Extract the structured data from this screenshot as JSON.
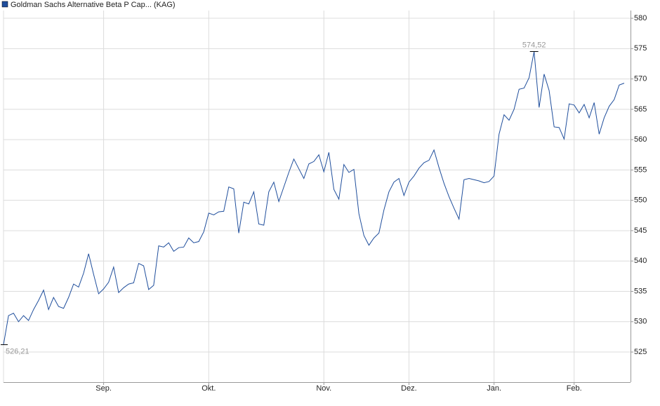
{
  "chart_data": {
    "type": "line",
    "series": [
      {
        "name": "Goldman Sachs Alternative Beta P Cap... (KAG)",
        "color": "#1f4e9c",
        "values": [
          526.21,
          531,
          531.4,
          530,
          531,
          530.2,
          532,
          533.5,
          535.2,
          532,
          534,
          532.5,
          532.2,
          534,
          536.2,
          535.7,
          538,
          541.2,
          537.8,
          534.6,
          535.4,
          536.5,
          539,
          534.8,
          535.6,
          536.2,
          536.4,
          539.6,
          539.2,
          535.3,
          536,
          542.5,
          542.3,
          543,
          541.6,
          542.2,
          542.3,
          543.8,
          543,
          543.2,
          544.8,
          547.9,
          547.6,
          548.1,
          548.2,
          552.2,
          551.9,
          544.6,
          549.7,
          549.4,
          551.4,
          546.1,
          545.9,
          551.4,
          553,
          549.8,
          552.2,
          554.6,
          556.8,
          555.2,
          553.6,
          556,
          556.4,
          557.5,
          554.7,
          557.9,
          551.8,
          550.2,
          555.9,
          554.6,
          555.1,
          547.8,
          544.2,
          542.6,
          543.8,
          544.6,
          548.4,
          551.4,
          553,
          553.6,
          550.8,
          553,
          554,
          555.3,
          556.2,
          556.6,
          558.3,
          555.4,
          552.8,
          550.6,
          548.7,
          546.9,
          553.4,
          553.6,
          553.4,
          553.2,
          552.9,
          553.1,
          554,
          560.9,
          564.1,
          563.2,
          565,
          568.3,
          568.5,
          570.2,
          574.52,
          565.3,
          570.8,
          568.1,
          562.1,
          562,
          560.1,
          565.9,
          565.7,
          564.4,
          565.8,
          563.6,
          566.1,
          560.9,
          563.6,
          565.5,
          566.6,
          569,
          569.3
        ],
        "high_label": "574,52",
        "low_label": "526,21"
      }
    ],
    "categories": [
      null,
      null,
      null,
      null,
      null,
      null,
      null,
      null,
      null,
      null,
      null,
      null,
      null,
      null,
      null,
      null,
      null,
      null,
      null,
      null,
      "Sep.",
      null,
      null,
      null,
      null,
      null,
      null,
      null,
      null,
      null,
      null,
      null,
      null,
      null,
      null,
      null,
      null,
      null,
      null,
      null,
      null,
      "Okt.",
      null,
      null,
      null,
      null,
      null,
      null,
      null,
      null,
      null,
      null,
      null,
      null,
      null,
      null,
      null,
      null,
      null,
      null,
      null,
      null,
      null,
      null,
      "Nov.",
      null,
      null,
      null,
      null,
      null,
      null,
      null,
      null,
      null,
      null,
      null,
      null,
      null,
      null,
      null,
      null,
      "Dez.",
      null,
      null,
      null,
      null,
      null,
      null,
      null,
      null,
      null,
      null,
      null,
      null,
      null,
      null,
      null,
      null,
      "Jan.",
      null,
      null,
      null,
      null,
      null,
      null,
      null,
      null,
      null,
      null,
      null,
      null,
      null,
      null,
      null,
      "Feb.",
      null,
      null,
      null,
      null,
      null,
      null,
      null,
      null,
      null,
      null
    ],
    "ylim": [
      520,
      581.3
    ],
    "yticks": [
      525,
      530,
      535,
      540,
      545,
      550,
      555,
      560,
      565,
      570,
      575,
      580
    ],
    "grid": true,
    "legend": "top-left"
  }
}
